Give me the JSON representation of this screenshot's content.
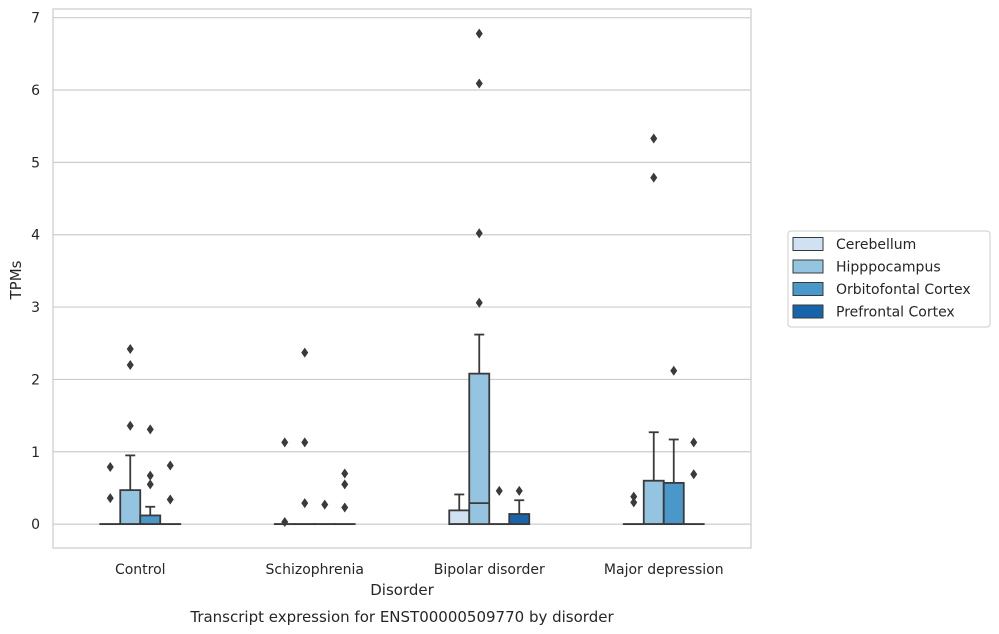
{
  "chart_data": {
    "type": "box",
    "title": "Transcript expression for ENST00000509770 by disorder",
    "xlabel": "Disorder",
    "ylabel": "TPMs",
    "ylim": [
      -0.33,
      7.12
    ],
    "yticks": [
      0,
      1,
      2,
      3,
      4,
      5,
      6,
      7
    ],
    "grid": "horizontal",
    "legend_position": "center-right",
    "categories": [
      "Control",
      "Schizophrenia",
      "Bipolar disorder",
      "Major depression"
    ],
    "series": [
      {
        "name": "Cerebellum",
        "color": "#d0e1f2",
        "boxes": [
          {
            "q1": 0,
            "median": 0,
            "q3": 0,
            "whislo": 0,
            "whishi": 0,
            "fliers": [
              0.36,
              0.79
            ]
          },
          {
            "q1": 0,
            "median": 0,
            "q3": 0,
            "whislo": 0,
            "whishi": 0,
            "fliers": [
              0.03,
              1.13
            ]
          },
          {
            "q1": 0,
            "median": 0,
            "q3": 0.19,
            "whislo": 0,
            "whishi": 0.41,
            "fliers": []
          },
          {
            "q1": 0,
            "median": 0,
            "q3": 0,
            "whislo": 0,
            "whishi": 0,
            "fliers": [
              0.3,
              0.38
            ]
          }
        ]
      },
      {
        "name": "Hipppocampus",
        "color": "#94c4df",
        "boxes": [
          {
            "q1": 0,
            "median": 0,
            "q3": 0.47,
            "whislo": 0,
            "whishi": 0.95,
            "fliers": [
              1.36,
              2.2,
              2.42
            ]
          },
          {
            "q1": 0,
            "median": 0,
            "q3": 0,
            "whislo": 0,
            "whishi": 0,
            "fliers": [
              0.29,
              1.13,
              2.37
            ]
          },
          {
            "q1": 0,
            "median": 0.29,
            "q3": 2.08,
            "whislo": 0,
            "whishi": 2.62,
            "fliers": [
              3.06,
              4.02,
              6.09,
              6.78
            ]
          },
          {
            "q1": 0,
            "median": 0,
            "q3": 0.6,
            "whislo": 0,
            "whishi": 1.27,
            "fliers": [
              4.79,
              5.33
            ]
          }
        ]
      },
      {
        "name": "Orbitofontal Cortex",
        "color": "#4a98c9",
        "boxes": [
          {
            "q1": 0,
            "median": 0,
            "q3": 0.12,
            "whislo": 0,
            "whishi": 0.24,
            "fliers": [
              0.55,
              0.67,
              1.31
            ]
          },
          {
            "q1": 0,
            "median": 0,
            "q3": 0,
            "whislo": 0,
            "whishi": 0,
            "fliers": [
              0.27
            ]
          },
          {
            "q1": 0,
            "median": 0,
            "q3": 0,
            "whislo": 0,
            "whishi": 0,
            "fliers": [
              0.46
            ]
          },
          {
            "q1": 0,
            "median": 0,
            "q3": 0.57,
            "whislo": 0,
            "whishi": 1.17,
            "fliers": [
              2.12
            ]
          }
        ]
      },
      {
        "name": "Prefrontal Cortex",
        "color": "#1764ab",
        "boxes": [
          {
            "q1": 0,
            "median": 0,
            "q3": 0,
            "whislo": 0,
            "whishi": 0,
            "fliers": [
              0.34,
              0.81
            ]
          },
          {
            "q1": 0,
            "median": 0,
            "q3": 0,
            "whislo": 0,
            "whishi": 0,
            "fliers": [
              0.23,
              0.55,
              0.7
            ]
          },
          {
            "q1": 0,
            "median": 0,
            "q3": 0.14,
            "whislo": 0,
            "whishi": 0.33,
            "fliers": [
              0.46
            ]
          },
          {
            "q1": 0,
            "median": 0,
            "q3": 0,
            "whislo": 0,
            "whishi": 0,
            "fliers": [
              0.69,
              1.13
            ]
          }
        ]
      }
    ]
  }
}
